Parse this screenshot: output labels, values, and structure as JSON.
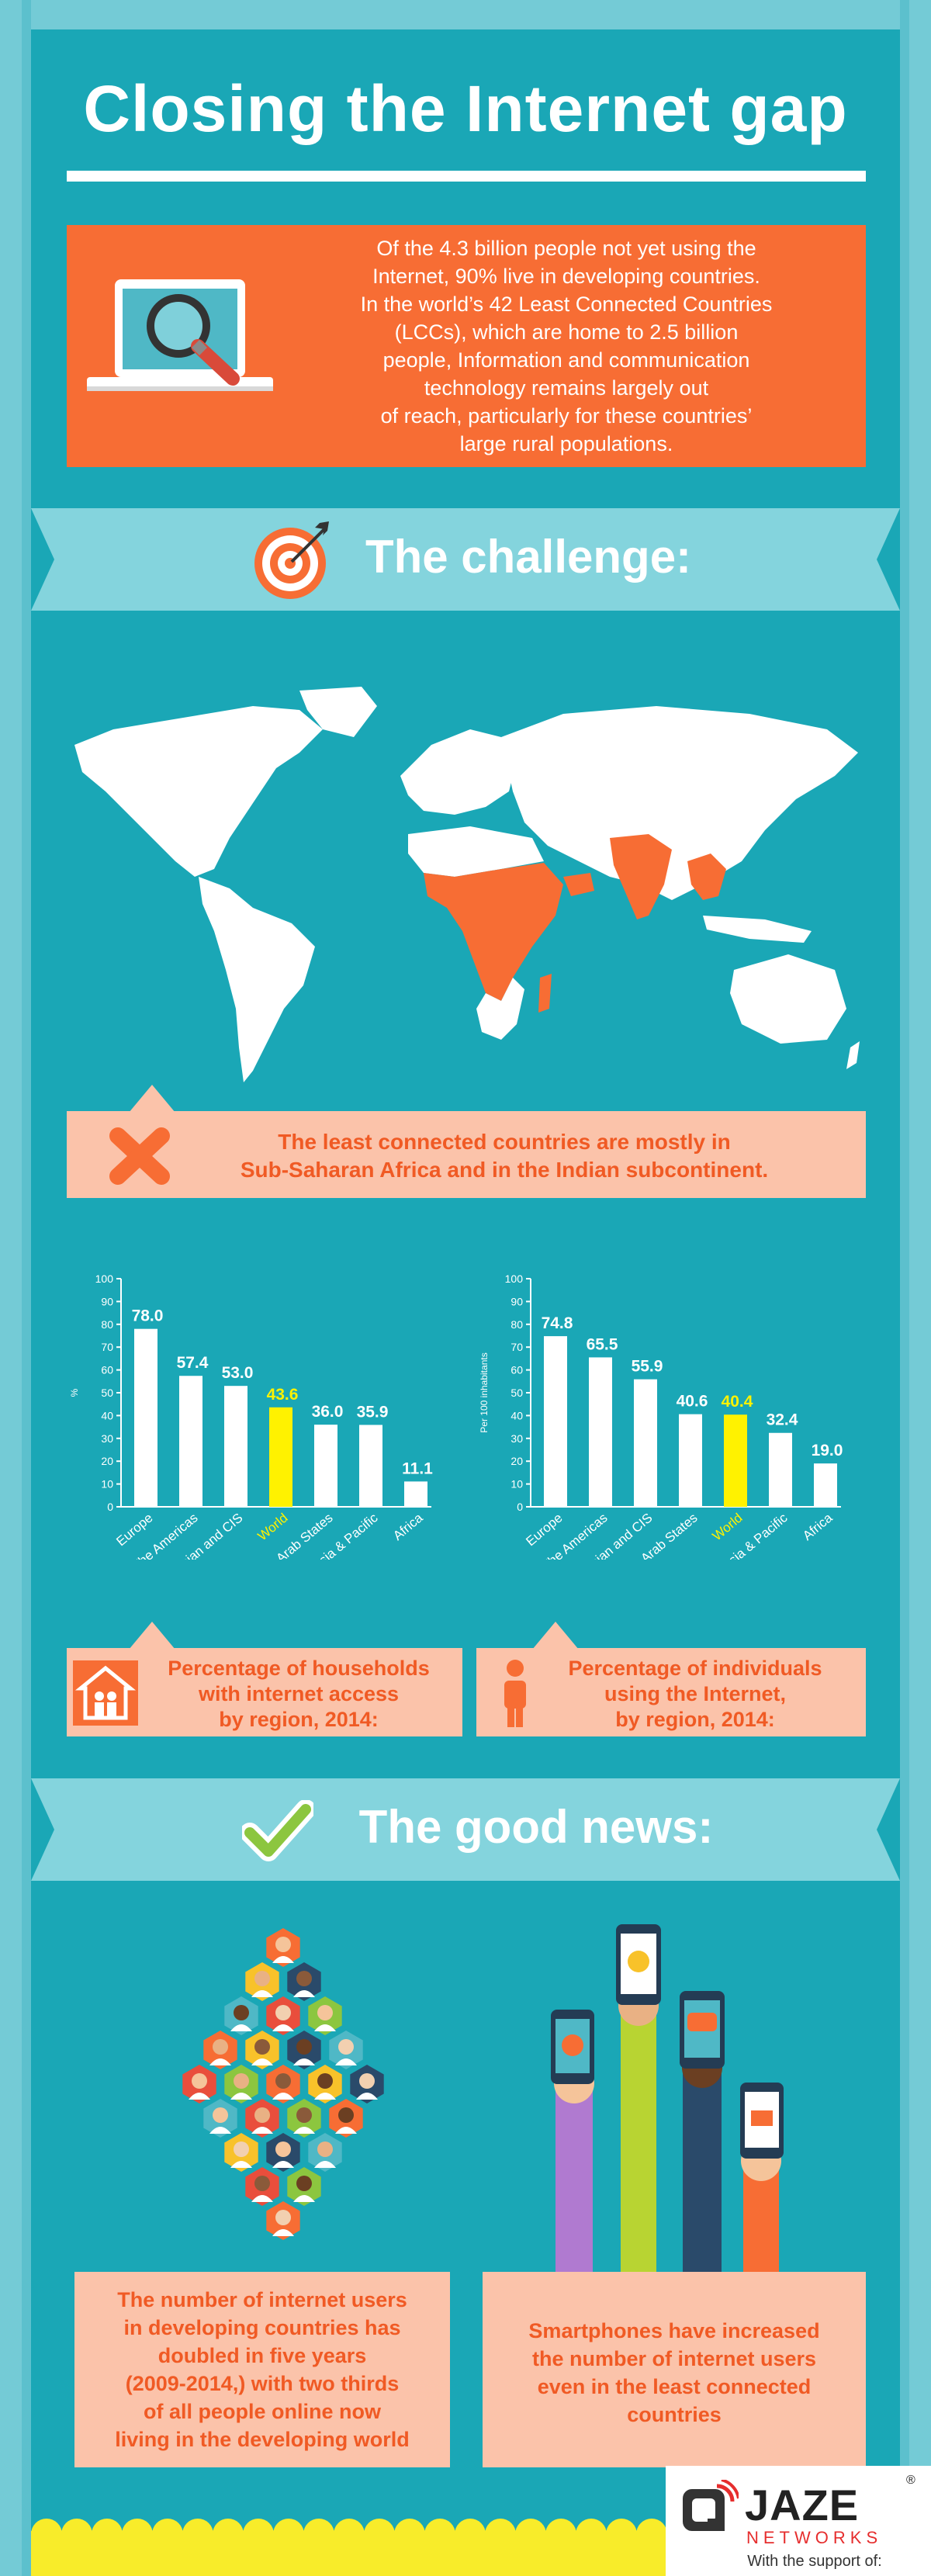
{
  "header": {
    "title": "Closing the Internet gap"
  },
  "intro": {
    "lines": [
      "Of the 4.3 billion people not yet using the",
      "Internet, 90% live in developing countries.",
      "In the world’s 42 Least Connected Countries",
      "(LCCs), which are home to 2.5 billion",
      "people, Information and communication",
      "technology remains largely out",
      "of reach, particularly for these countries’",
      "large rural populations."
    ]
  },
  "challenge": {
    "title": "The challenge:"
  },
  "map_callout": {
    "line1": "The least connected countries are mostly in",
    "line2": "Sub-Saharan Africa and in the Indian subcontinent."
  },
  "chart_data": [
    {
      "type": "bar",
      "categories": [
        "Europe",
        "The Americas",
        "Russian and CIS",
        "World",
        "Arab States",
        "Asia & Pacific",
        "Africa"
      ],
      "values": [
        78.0,
        57.4,
        53.0,
        43.6,
        36.0,
        35.9,
        11.1
      ],
      "value_labels": [
        "78.0",
        "57.4",
        "53.0",
        "43.6",
        "36.0",
        "35.9",
        "11.1"
      ],
      "highlight": "World",
      "ylabel": "%",
      "ylim": [
        0,
        100
      ],
      "yticks": [
        "0",
        "10",
        "20",
        "30",
        "40",
        "50",
        "60",
        "70",
        "80",
        "90",
        "100"
      ],
      "title": "Percentage of households with internet access by region, 2014:"
    },
    {
      "type": "bar",
      "categories": [
        "Europe",
        "The Americas",
        "Russian and CIS",
        "Arab States",
        "World",
        "Asia & Pacific",
        "Africa"
      ],
      "values": [
        74.8,
        65.5,
        55.9,
        40.6,
        40.4,
        32.4,
        19.0
      ],
      "value_labels": [
        "74.8",
        "65.5",
        "55.9",
        "40.6",
        "40.4",
        "32.4",
        "19.0"
      ],
      "highlight": "World",
      "ylabel": "Per 100 inhabitants",
      "ylim": [
        0,
        100
      ],
      "yticks": [
        "0",
        "10",
        "20",
        "30",
        "40",
        "50",
        "60",
        "70",
        "80",
        "90",
        "100"
      ],
      "title": "Percentage of individuals using the Internet, by region, 2014:"
    }
  ],
  "chart_captions": {
    "households": [
      "Percentage of households",
      "with internet access",
      "by region, 2014:"
    ],
    "individuals": [
      "Percentage of individuals",
      "using the Internet,",
      "by region, 2014:"
    ]
  },
  "good_news": {
    "title": "The good news:"
  },
  "bottom_left": {
    "lines": [
      "The number of internet users",
      "in developing countries has",
      "doubled in five years",
      "(2009-2014,) with two thirds",
      "of all people online now",
      "living in the developing world"
    ]
  },
  "bottom_right": {
    "lines": [
      "Smartphones have increased",
      "the number of internet users",
      "even in the least connected",
      "countries"
    ]
  },
  "logo": {
    "brand": "JAZE",
    "sub": "NETWORKS",
    "reg": "®",
    "support": "With the support of:"
  },
  "colors": {
    "teal": "#1aa7b6",
    "orange": "#f76d34",
    "peach": "#fbc3aa",
    "yellow": "#f8ec2a",
    "highlight": "#fff200"
  }
}
